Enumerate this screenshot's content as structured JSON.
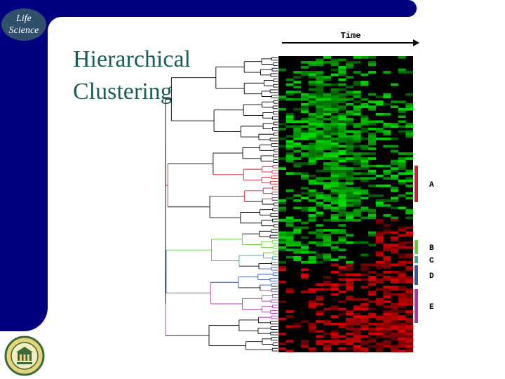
{
  "slide": {
    "badge": {
      "line1": "Life",
      "line2": "Science"
    },
    "title": {
      "line1": "Hierarchical",
      "line2": "Clustering"
    }
  },
  "figure": {
    "type": "heatmap",
    "axis_label": "Time",
    "cluster_labels": [
      "A",
      "B",
      "C",
      "D",
      "E"
    ],
    "cluster_colors": [
      "#cc2233",
      "#66cc33",
      "#33aa88",
      "#3355aa",
      "#aa33aa"
    ],
    "heat_colors": {
      "low": "#00e000",
      "mid": "#000000",
      "high": "#e00000"
    }
  },
  "seal": {
    "icon": "university-seal-icon"
  }
}
